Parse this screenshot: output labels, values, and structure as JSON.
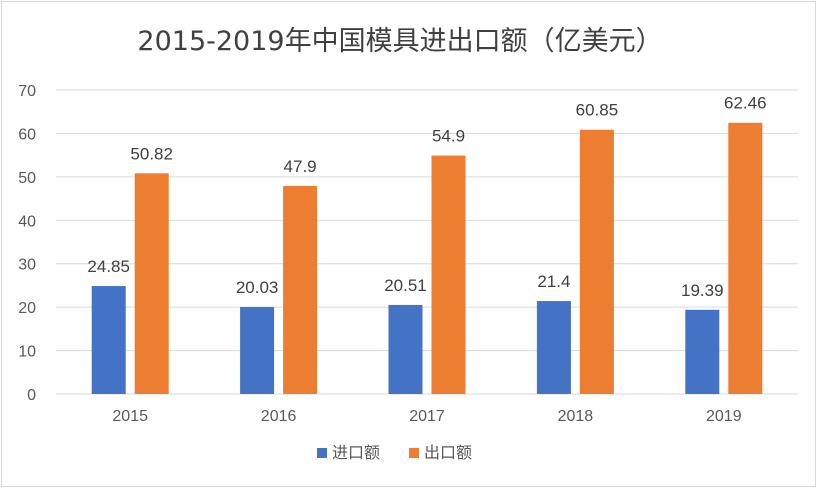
{
  "chart_data": {
    "type": "bar",
    "title": "2015-2019年中国模具进出口额（亿美元）",
    "xlabel": "",
    "ylabel": "",
    "categories": [
      "2015",
      "2016",
      "2017",
      "2018",
      "2019"
    ],
    "series": [
      {
        "name": "进口额",
        "values": [
          24.85,
          20.03,
          20.51,
          21.4,
          19.39
        ],
        "labels": [
          "24.85",
          "20.03",
          "20.51",
          "21.4",
          "19.39"
        ],
        "color": "#4472c4"
      },
      {
        "name": "出口额",
        "values": [
          50.82,
          47.9,
          54.9,
          60.85,
          62.46
        ],
        "labels": [
          "50.82",
          "47.9",
          "54.9",
          "60.85",
          "62.46"
        ],
        "color": "#ed7d31"
      }
    ],
    "ylim": [
      0,
      70
    ],
    "yticks": [
      0,
      10,
      20,
      30,
      40,
      50,
      60,
      70
    ],
    "grid": true,
    "gridColor": "#d9d9d9",
    "legend": "bottom"
  }
}
